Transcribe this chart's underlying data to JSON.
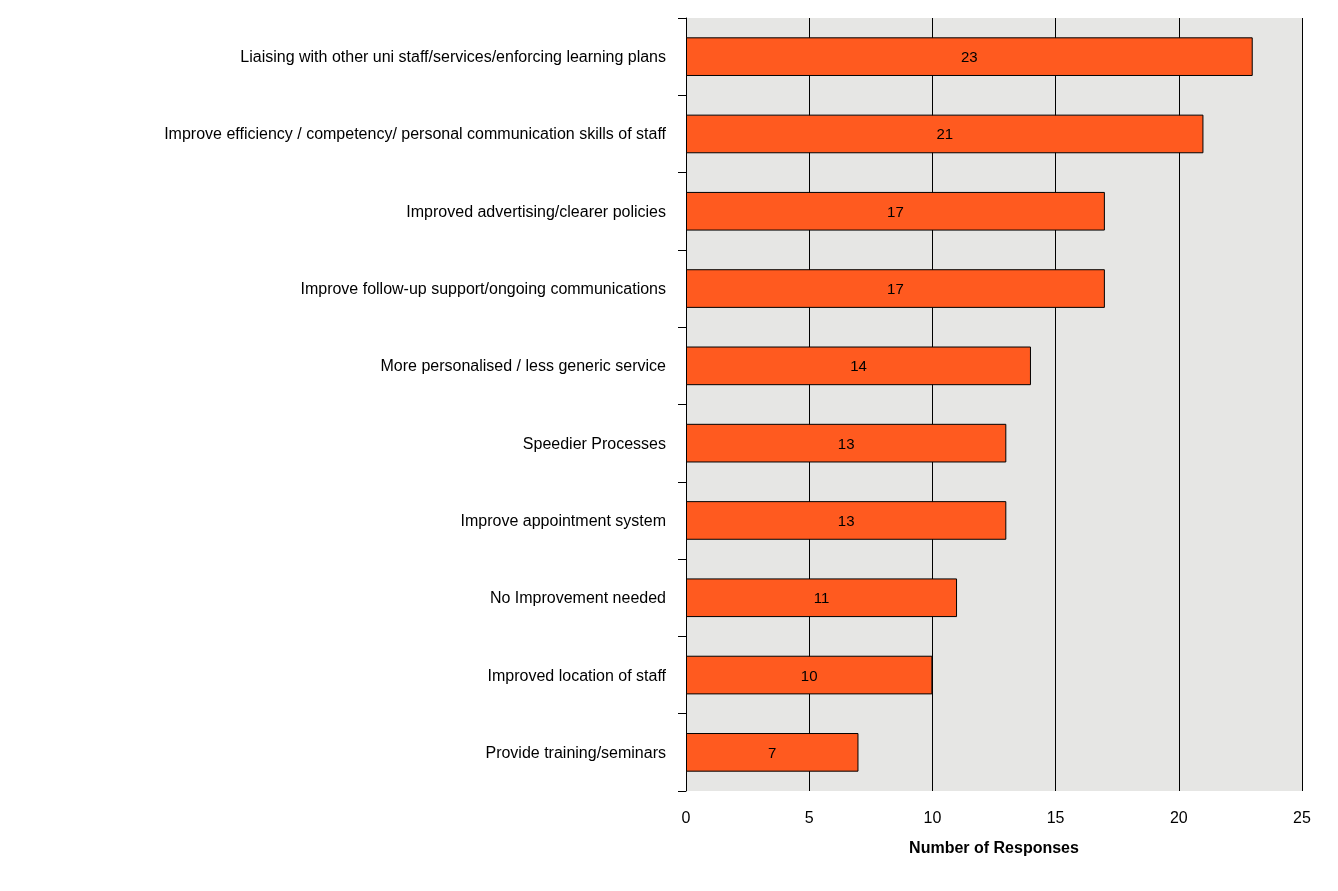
{
  "chart_data": {
    "type": "bar",
    "orientation": "horizontal",
    "xlabel": "Number of Responses",
    "categories": [
      "Liaising with other uni staff/services/enforcing learning plans",
      "Improve efficiency / competency/ personal communication skills of staff",
      "Improved advertising/clearer policies",
      "Improve follow-up support/ongoing communications",
      "More personalised / less generic service",
      "Speedier Processes",
      "Improve appointment system",
      "No Improvement needed",
      "Improved location of staff",
      "Provide training/seminars"
    ],
    "values": [
      23,
      21,
      17,
      17,
      14,
      13,
      13,
      11,
      10,
      7
    ],
    "color": "#ff5a1f",
    "xlim": [
      0,
      25
    ],
    "xticks": [
      0,
      5,
      10,
      15,
      20,
      25
    ],
    "grid": "x",
    "data_labels": true
  }
}
